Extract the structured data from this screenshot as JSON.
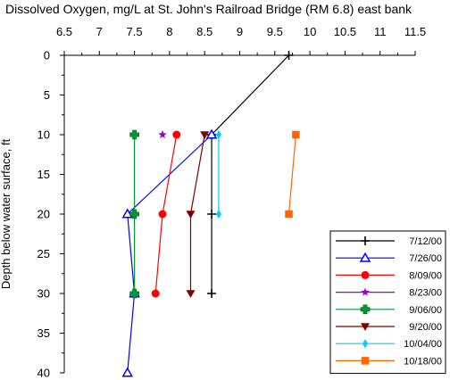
{
  "chart_data": {
    "type": "line",
    "title": "Dissolved Oxygen, mg/L at St. John's Railroad Bridge (RM 6.8) east bank",
    "xlabel": "",
    "ylabel": "Depth below water surface, ft",
    "xlim": [
      6.5,
      11.5
    ],
    "ylim": [
      0,
      40
    ],
    "y_inverted": true,
    "x_axis_position": "top",
    "x_ticks": [
      "6.5",
      "7",
      "7.5",
      "8",
      "8.5",
      "9",
      "9.5",
      "10",
      "10.5",
      "11",
      "11.5"
    ],
    "y_ticks": [
      "0",
      "5",
      "10",
      "15",
      "20",
      "25",
      "30",
      "35",
      "40"
    ],
    "grid": false,
    "legend_position": "bottom-right",
    "series": [
      {
        "name": "7/12/00",
        "color": "#000000",
        "marker": "plus",
        "points": [
          [
            9.7,
            0
          ],
          [
            8.6,
            10
          ],
          [
            8.6,
            20
          ],
          [
            8.6,
            30
          ]
        ]
      },
      {
        "name": "7/26/00",
        "color": "#0000ff",
        "marker": "triangle-open",
        "points": [
          [
            8.6,
            10
          ],
          [
            7.4,
            20
          ],
          [
            7.5,
            30
          ],
          [
            7.4,
            40
          ]
        ]
      },
      {
        "name": "8/09/00",
        "color": "#ff0000",
        "marker": "circle",
        "points": [
          [
            8.1,
            10
          ],
          [
            7.9,
            20
          ],
          [
            7.8,
            30
          ]
        ]
      },
      {
        "name": "8/23/00",
        "color": "#9900cc",
        "marker": "star",
        "points": [
          [
            7.9,
            10
          ]
        ]
      },
      {
        "name": "9/06/00",
        "color": "#009933",
        "marker": "cross",
        "points": [
          [
            7.5,
            10
          ],
          [
            7.5,
            20
          ],
          [
            7.5,
            30
          ]
        ]
      },
      {
        "name": "9/20/00",
        "color": "#800000",
        "marker": "triangle-down",
        "points": [
          [
            8.5,
            10
          ],
          [
            8.3,
            20
          ],
          [
            8.3,
            30
          ]
        ]
      },
      {
        "name": "10/04/00",
        "color": "#00ccff",
        "marker": "diamond",
        "points": [
          [
            8.7,
            10
          ],
          [
            8.7,
            20
          ]
        ]
      },
      {
        "name": "10/18/00",
        "color": "#ff6600",
        "marker": "square",
        "points": [
          [
            9.8,
            10
          ],
          [
            9.7,
            20
          ]
        ]
      }
    ]
  }
}
